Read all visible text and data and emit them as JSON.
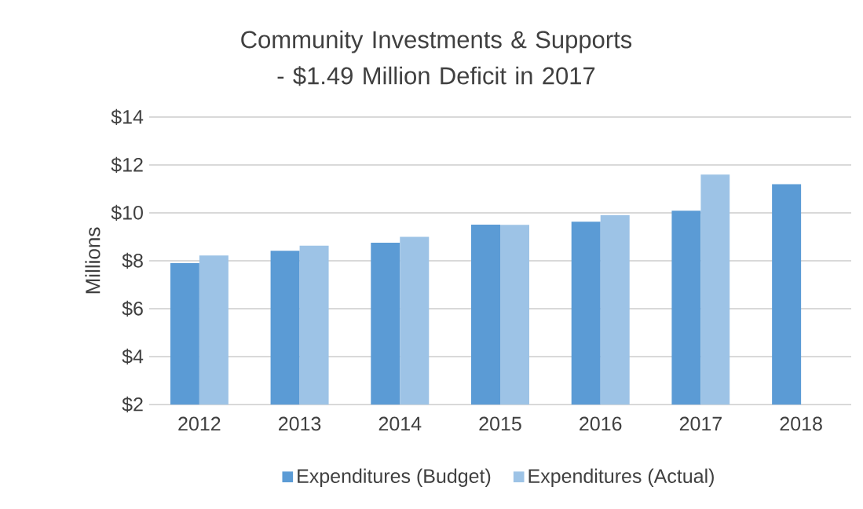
{
  "chart_data": {
    "type": "bar",
    "title": "Community Investments & Supports - $1.49 Million Deficit in 2017",
    "ylabel": "Millions",
    "categories": [
      "2012",
      "2013",
      "2014",
      "2015",
      "2016",
      "2017",
      "2018"
    ],
    "series": [
      {
        "name": "Expenditures (Budget)",
        "color": "#5b9bd5",
        "values": [
          7.9,
          8.42,
          8.75,
          9.51,
          9.63,
          10.09,
          11.2
        ]
      },
      {
        "name": "Expenditures (Actual)",
        "color": "#9dc3e6",
        "values": [
          8.22,
          8.63,
          9.0,
          9.5,
          9.9,
          11.6,
          null
        ]
      }
    ],
    "ylim": [
      2,
      14
    ],
    "yticks": [
      {
        "value": 2,
        "label": "$2"
      },
      {
        "value": 4,
        "label": "$4"
      },
      {
        "value": 6,
        "label": "$6"
      },
      {
        "value": 8,
        "label": "$8"
      },
      {
        "value": 10,
        "label": "$10"
      },
      {
        "value": 12,
        "label": "$12"
      },
      {
        "value": 14,
        "label": "$14"
      }
    ],
    "grid": "y",
    "legend": "bottom"
  }
}
